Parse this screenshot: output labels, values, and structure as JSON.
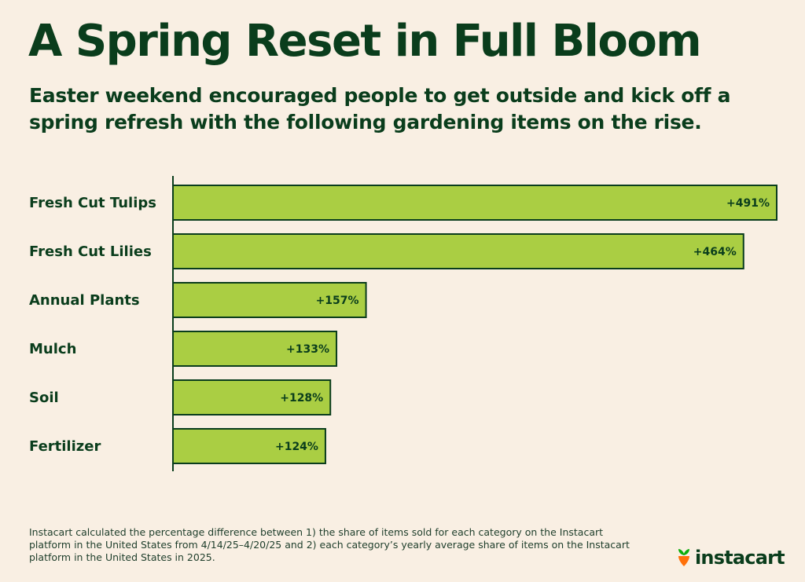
{
  "title": "A Spring Reset in Full Bloom",
  "subtitle": "Easter weekend encouraged people to get outside and kick off a spring refresh with the following gardening items on the rise.",
  "chart_data": {
    "type": "bar",
    "orientation": "horizontal",
    "categories": [
      "Fresh Cut Tulips",
      "Fresh Cut Lilies",
      "Annual Plants",
      "Mulch",
      "Soil",
      "Fertilizer"
    ],
    "values": [
      491,
      464,
      157,
      133,
      128,
      124
    ],
    "value_labels": [
      "+491%",
      "+464%",
      "+157%",
      "+133%",
      "+128%",
      "+124%"
    ],
    "xlim": [
      0,
      491
    ],
    "grid": false,
    "bar_color": "#aace43",
    "bar_outline": "#0a3d1c"
  },
  "footnote": "Instacart calculated the percentage difference between 1) the share of items sold for each category on the Instacart platform in the United States from 4/14/25–4/20/25 and 2) each category’s yearly average share of items on the Instacart platform in the United States in 2025.",
  "logo": {
    "wordmark": "instacart",
    "icon": "carrot-icon",
    "leaf_color": "#0aad0a",
    "root_color": "#ff7009"
  },
  "colors": {
    "background": "#f9efe3",
    "text": "#0a3d1c"
  }
}
